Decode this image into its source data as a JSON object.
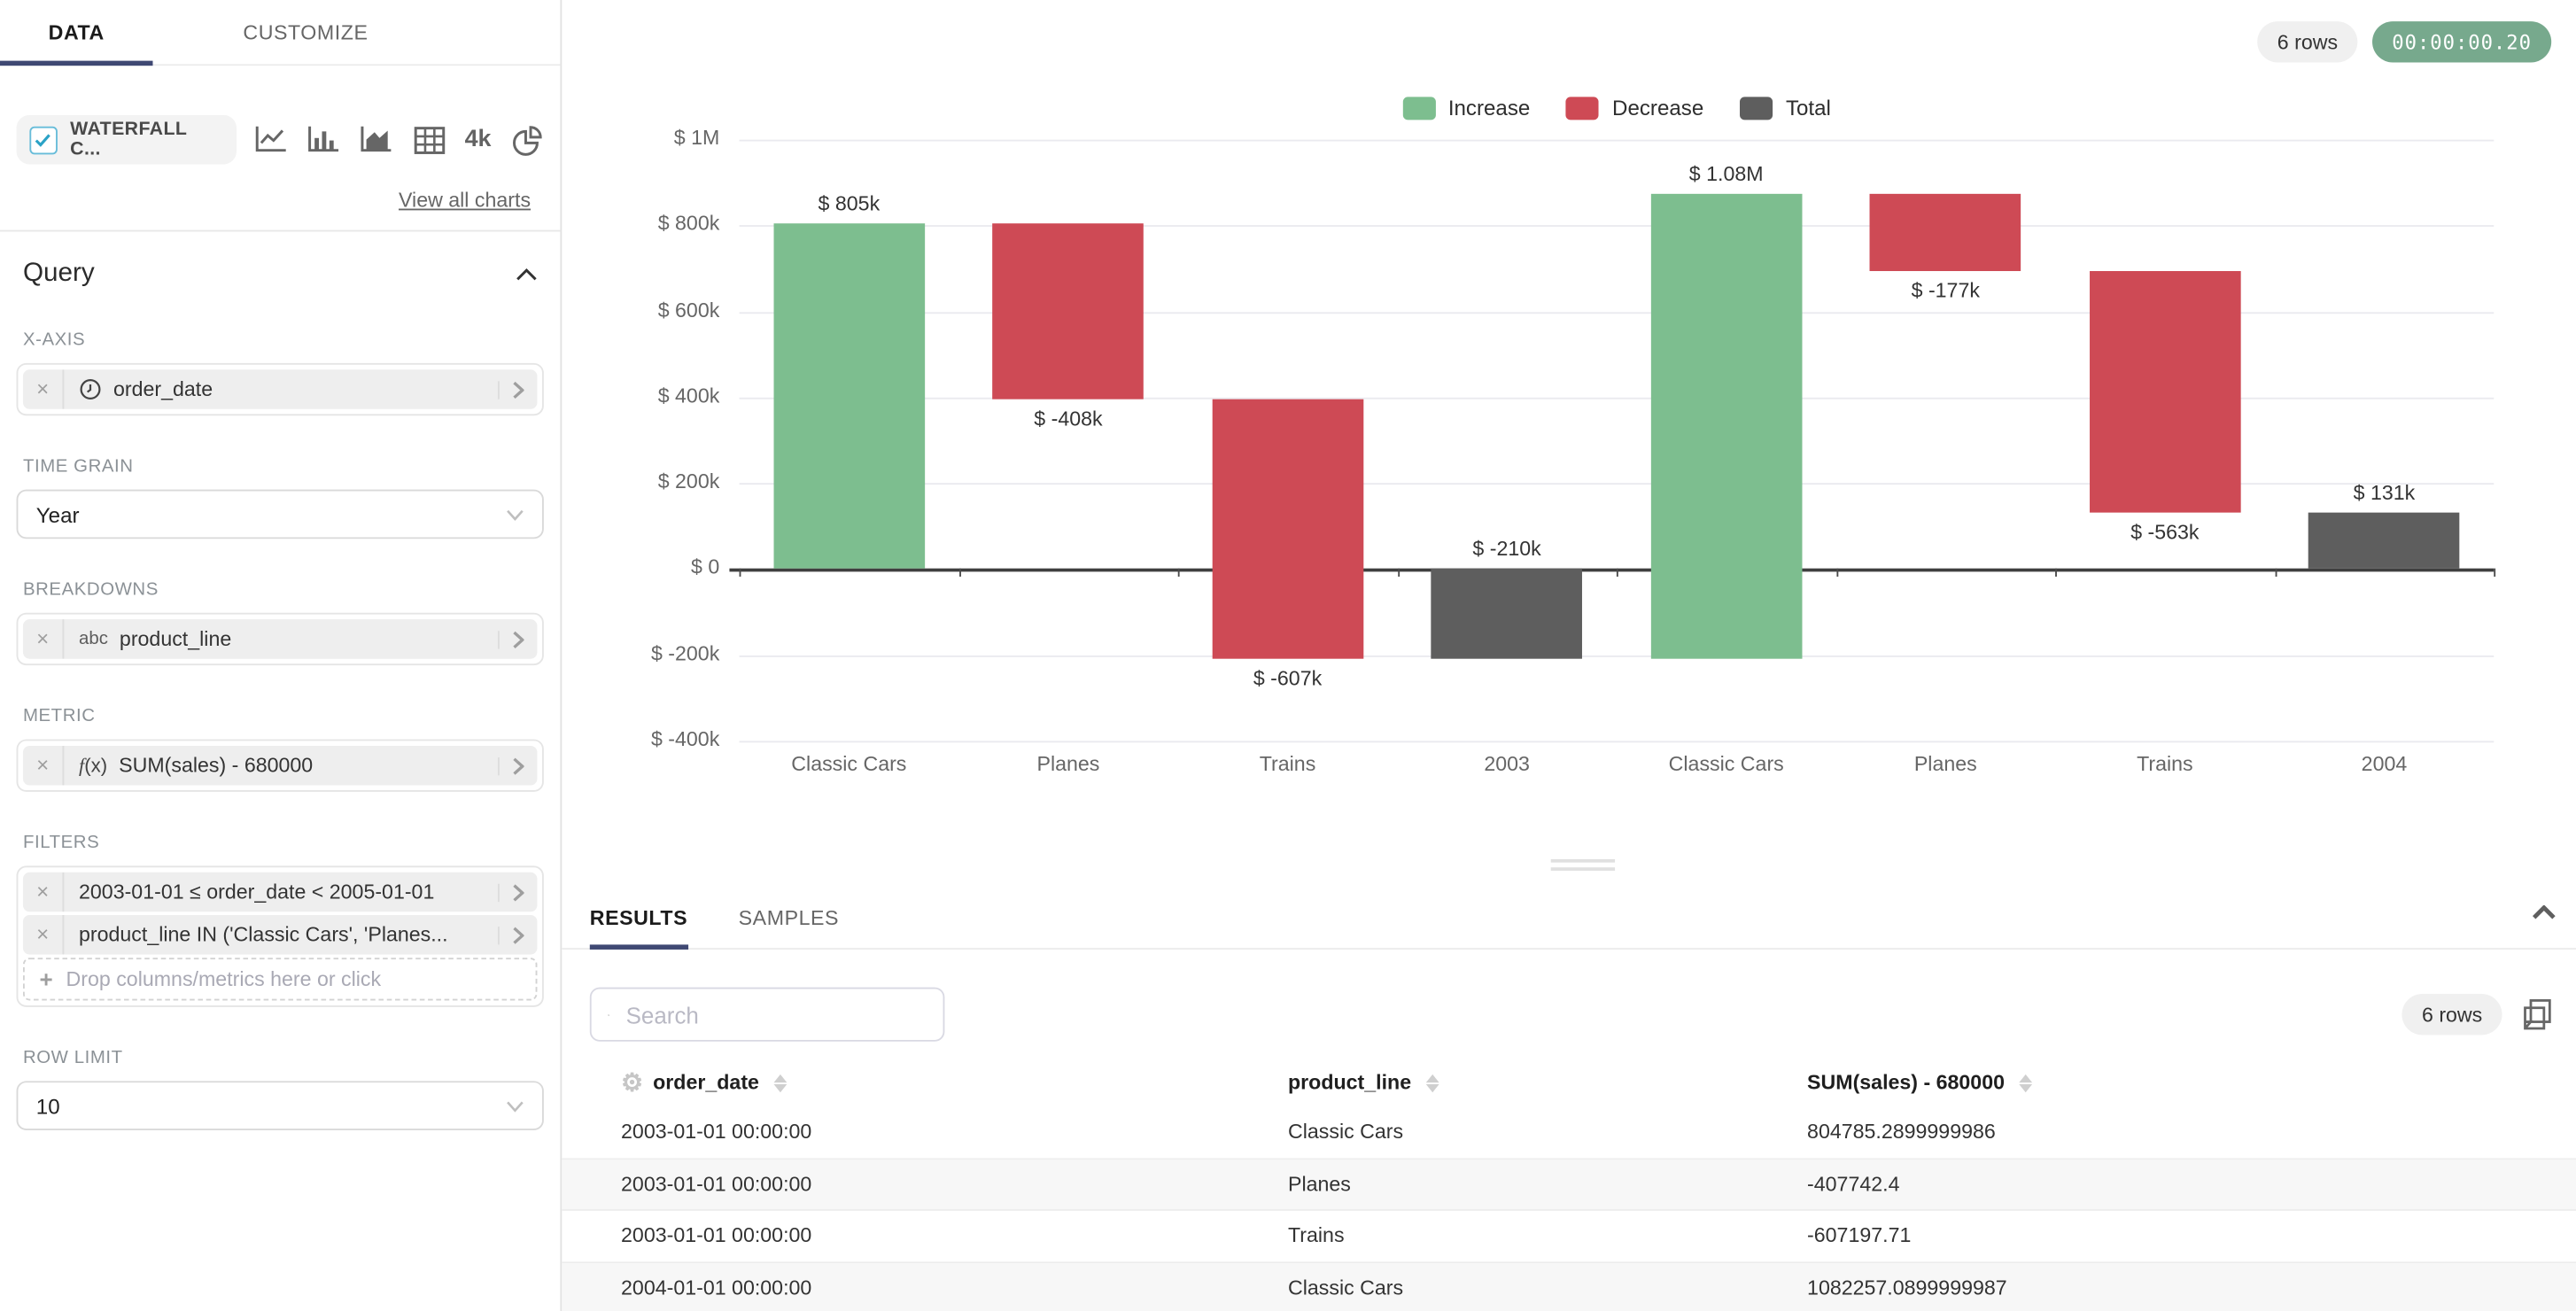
{
  "sidebar": {
    "tabs": [
      {
        "label": "DATA",
        "active": true
      },
      {
        "label": "CUSTOMIZE",
        "active": false
      }
    ],
    "viz": {
      "selected_label": "WATERFALL C...",
      "big_number_text": "4k",
      "view_all_label": "View all charts"
    },
    "query": {
      "title": "Query",
      "x_axis_label": "X-AXIS",
      "x_axis_value": "order_date",
      "time_grain_label": "TIME GRAIN",
      "time_grain_value": "Year",
      "breakdowns_label": "BREAKDOWNS",
      "breakdowns_prefix": "abc",
      "breakdowns_value": "product_line",
      "metric_label": "METRIC",
      "metric_prefix": "f(x)",
      "metric_value": "SUM(sales) - 680000",
      "filters_label": "FILTERS",
      "filters": [
        "2003-01-01 ≤ order_date < 2005-01-01",
        "product_line IN ('Classic Cars', 'Planes..."
      ],
      "drop_hint": "Drop columns/metrics here or click",
      "row_limit_label": "ROW LIMIT",
      "row_limit_value": "10"
    }
  },
  "header": {
    "rows_badge": "6 rows",
    "timer": "00:00:00.20"
  },
  "chart_data": {
    "type": "bar",
    "subtype": "waterfall",
    "title": "",
    "categories": [
      "Classic Cars",
      "Planes",
      "Trains",
      "2003",
      "Classic Cars",
      "Planes",
      "Trains",
      "2004"
    ],
    "steps": [
      {
        "category": "Classic Cars",
        "kind": "increase",
        "value": 804785.29,
        "label": "$ 805k"
      },
      {
        "category": "Planes",
        "kind": "decrease",
        "value": -407742.4,
        "label": "$ -408k"
      },
      {
        "category": "Trains",
        "kind": "decrease",
        "value": -607197.71,
        "label": "$ -607k"
      },
      {
        "category": "2003",
        "kind": "total",
        "value": -210154.82,
        "label": "$ -210k"
      },
      {
        "category": "Classic Cars",
        "kind": "increase",
        "value": 1082257.09,
        "label": "$ 1.08M"
      },
      {
        "category": "Planes",
        "kind": "decrease",
        "value": -177000,
        "label": "$ -177k"
      },
      {
        "category": "Trains",
        "kind": "decrease",
        "value": -563000,
        "label": "$ -563k"
      },
      {
        "category": "2004",
        "kind": "total",
        "value": 131365,
        "label": "$ 131k"
      }
    ],
    "legend": [
      {
        "label": "Increase",
        "kind": "increase",
        "color": "#7DBE8F"
      },
      {
        "label": "Decrease",
        "kind": "decrease",
        "color": "#CE4A55"
      },
      {
        "label": "Total",
        "kind": "total",
        "color": "#5E5E5E"
      }
    ],
    "legend_position": "top",
    "grid": true,
    "y_ticks": [
      "$ 1M",
      "$ 800k",
      "$ 600k",
      "$ 400k",
      "$ 200k",
      "$ 0",
      "$ -200k",
      "$ -400k"
    ],
    "ylim": [
      -400000,
      1000000
    ],
    "xlabel": "",
    "ylabel": ""
  },
  "results": {
    "tabs": [
      {
        "label": "RESULTS",
        "active": true
      },
      {
        "label": "SAMPLES",
        "active": false
      }
    ],
    "search_placeholder": "Search",
    "rows_badge": "6 rows",
    "table": {
      "columns": [
        "order_date",
        "product_line",
        "SUM(sales) - 680000"
      ],
      "rows": [
        [
          "2003-01-01 00:00:00",
          "Classic Cars",
          "804785.2899999986"
        ],
        [
          "2003-01-01 00:00:00",
          "Planes",
          "-407742.4"
        ],
        [
          "2003-01-01 00:00:00",
          "Trains",
          "-607197.71"
        ],
        [
          "2004-01-01 00:00:00",
          "Classic Cars",
          "1082257.0899999987"
        ]
      ]
    }
  },
  "colors": {
    "tab_ink": "#3F4873",
    "increase": "#7DBE8F",
    "decrease": "#CE4A55",
    "total": "#5E5E5E",
    "timer_bg": "#77A98D",
    "gridline": "#EAEAEF",
    "axis_text": "#666666"
  }
}
